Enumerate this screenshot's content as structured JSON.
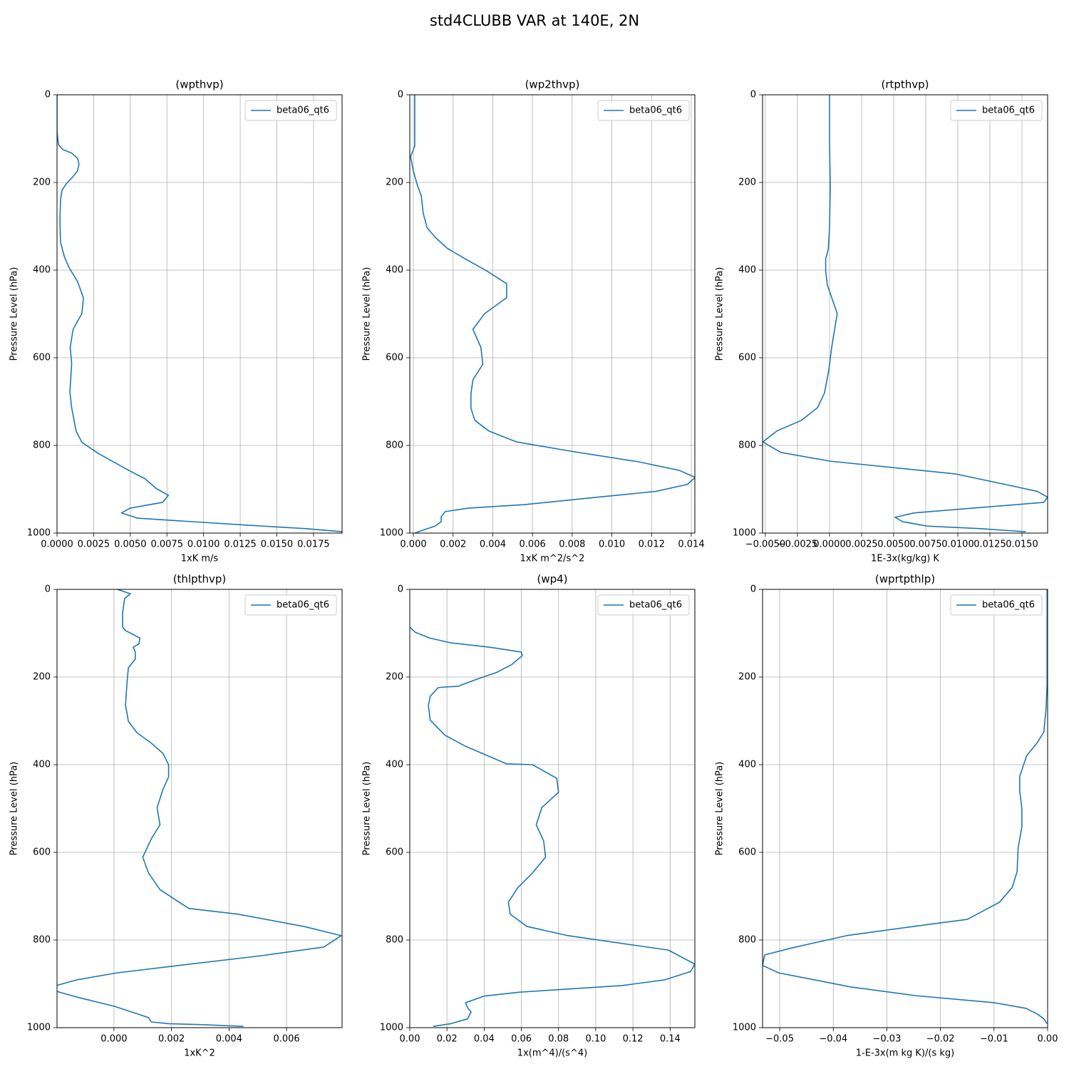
{
  "title": "std4CLUBB VAR at 140E, 2N",
  "chart_data": [
    {
      "type": "line",
      "title": "(wpthvp)",
      "xlabel": "1xK m/s",
      "ylabel": "Pressure Level (hPa)",
      "xlim": [
        0,
        0.01945
      ],
      "xticks": [
        {
          "value": 0,
          "label": "0.0000"
        },
        {
          "value": 0.0025,
          "label": "0.0025"
        },
        {
          "value": 0.005,
          "label": "0.0050"
        },
        {
          "value": 0.0075,
          "label": "0.0075"
        },
        {
          "value": 0.01,
          "label": "0.0100"
        },
        {
          "value": 0.0125,
          "label": "0.0125"
        },
        {
          "value": 0.015,
          "label": "0.0150"
        },
        {
          "value": 0.0175,
          "label": "0.0175"
        }
      ],
      "ylim": [
        1000,
        0
      ],
      "yticks": [
        0,
        200,
        400,
        600,
        800,
        1000
      ],
      "grid": true,
      "legend": "upper right",
      "y": [
        0,
        85,
        114,
        125,
        133,
        145,
        158,
        174,
        190,
        203,
        218,
        239,
        288,
        337,
        369,
        393,
        426,
        463,
        499,
        535,
        576,
        613,
        678,
        714,
        767,
        793,
        818,
        857,
        876,
        899,
        914,
        930,
        943,
        954,
        966,
        972,
        982,
        990,
        997
      ],
      "series": [
        {
          "name": "beta06_qt6",
          "color": "#1f77b4",
          "values": [
            0,
            0,
            0.0001,
            0.0004,
            0.001,
            0.0014,
            0.0015,
            0.0014,
            0.001,
            0.00063,
            0.00034,
            0.00024,
            0.0002,
            0.00024,
            0.0005,
            0.0008,
            0.0014,
            0.0018,
            0.0017,
            0.0011,
            0.0009,
            0.001,
            0.00088,
            0.001,
            0.0013,
            0.0017,
            0.0028,
            0.0049,
            0.006,
            0.0068,
            0.0076,
            0.0072,
            0.005,
            0.0044,
            0.0055,
            0.0083,
            0.013,
            0.017,
            0.0195
          ]
        }
      ]
    },
    {
      "type": "line",
      "title": "(wp2thvp)",
      "xlabel": "1xK m^2/s^2",
      "ylabel": "Pressure Level (hPa)",
      "xlim": [
        -0.00018,
        0.01418
      ],
      "xticks": [
        {
          "value": 0,
          "label": "0.000"
        },
        {
          "value": 0.002,
          "label": "0.002"
        },
        {
          "value": 0.004,
          "label": "0.004"
        },
        {
          "value": 0.006,
          "label": "0.006"
        },
        {
          "value": 0.008,
          "label": "0.008"
        },
        {
          "value": 0.01,
          "label": "0.010"
        },
        {
          "value": 0.012,
          "label": "0.012"
        },
        {
          "value": 0.014,
          "label": "0.014"
        }
      ],
      "ylim": [
        1000,
        0
      ],
      "yticks": [
        0,
        200,
        400,
        600,
        800,
        1000
      ],
      "grid": true,
      "legend": "upper right",
      "y": [
        0,
        117,
        125,
        141,
        174,
        206,
        231,
        271,
        304,
        325,
        350,
        374,
        402,
        431,
        463,
        499,
        535,
        576,
        615,
        650,
        683,
        715,
        743,
        767,
        792,
        813,
        837,
        857,
        873,
        889,
        905,
        918,
        935,
        943,
        951,
        963,
        974,
        984,
        993,
        1000
      ],
      "series": [
        {
          "name": "beta06_qt6",
          "color": "#1f77b4",
          "values": [
            7e-05,
            7e-05,
            0,
            -0.00014,
            0,
            0.0002,
            0.0004,
            0.0005,
            0.0007,
            0.0011,
            0.0017,
            0.0026,
            0.0037,
            0.0047,
            0.0047,
            0.0036,
            0.003,
            0.0034,
            0.0035,
            0.003,
            0.0029,
            0.0029,
            0.0031,
            0.0038,
            0.0052,
            0.0079,
            0.0113,
            0.0134,
            0.0142,
            0.0138,
            0.0122,
            0.0093,
            0.0056,
            0.0028,
            0.0016,
            0.0014,
            0.0014,
            0.0011,
            0.0005,
            7e-05
          ]
        }
      ]
    },
    {
      "type": "line",
      "title": "(rtpthvp)",
      "xlabel": "1E-3x(kg/kg) K",
      "ylabel": "Pressure Level (hPa)",
      "xlim": [
        -0.00522,
        0.017
      ],
      "xticks": [
        {
          "value": -0.005,
          "label": "−0.0050"
        },
        {
          "value": -0.0025,
          "label": "−0.0025"
        },
        {
          "value": 0,
          "label": "0.0000"
        },
        {
          "value": 0.0025,
          "label": "0.0025"
        },
        {
          "value": 0.005,
          "label": "0.0050"
        },
        {
          "value": 0.0075,
          "label": "0.0075"
        },
        {
          "value": 0.01,
          "label": "0.0100"
        },
        {
          "value": 0.0125,
          "label": "0.0125"
        },
        {
          "value": 0.015,
          "label": "0.0150"
        }
      ],
      "ylim": [
        1000,
        0
      ],
      "yticks": [
        0,
        200,
        400,
        600,
        800,
        1000
      ],
      "grid": true,
      "legend": "upper right",
      "y": [
        0,
        109,
        206,
        304,
        353,
        374,
        402,
        434,
        463,
        499,
        576,
        629,
        681,
        714,
        743,
        767,
        792,
        816,
        836,
        865,
        889,
        905,
        918,
        930,
        954,
        964,
        974,
        984,
        990,
        997
      ],
      "series": [
        {
          "name": "beta06_qt6",
          "color": "#1f77b4",
          "values": [
            0,
            0,
            6e-05,
            0,
            -0.0001,
            -0.0003,
            -0.0003,
            -0.00017,
            0.00017,
            0.0006,
            0.00017,
            -6e-05,
            -0.0004,
            -0.00094,
            -0.0022,
            -0.0041,
            -0.0052,
            -0.0038,
            6e-05,
            0.0098,
            0.0137,
            0.0162,
            0.017,
            0.0167,
            0.0066,
            0.0051,
            0.0057,
            0.0076,
            0.0118,
            0.0153
          ]
        }
      ]
    },
    {
      "type": "line",
      "title": "(thlpthvp)",
      "xlabel": "1xK^2",
      "ylabel": "Pressure Level (hPa)",
      "xlim": [
        -0.00198,
        0.00793
      ],
      "xticks": [
        {
          "value": 0,
          "label": "0.000"
        },
        {
          "value": 0.002,
          "label": "0.002"
        },
        {
          "value": 0.004,
          "label": "0.004"
        },
        {
          "value": 0.006,
          "label": "0.006"
        }
      ],
      "ylim": [
        1000,
        0
      ],
      "yticks": [
        0,
        200,
        400,
        600,
        800,
        1000
      ],
      "grid": true,
      "legend": "upper right",
      "y": [
        0,
        10,
        21,
        54,
        86,
        94,
        111,
        124,
        132,
        143,
        159,
        179,
        216,
        265,
        281,
        301,
        327,
        351,
        374,
        400,
        428,
        457,
        498,
        537,
        569,
        611,
        647,
        685,
        728,
        741,
        769,
        790,
        816,
        836,
        860,
        875,
        891,
        904,
        917,
        930,
        951,
        966,
        977,
        987,
        991,
        993,
        997
      ],
      "series": [
        {
          "name": "beta06_qt6",
          "color": "#1f77b4",
          "values": [
            0.00012,
            0.00057,
            0.00037,
            0.0003,
            0.0003,
            0.0004,
            0.0009,
            0.00087,
            0.00067,
            0.00074,
            0.00074,
            0.0005,
            0.00045,
            0.0004,
            0.00045,
            0.0005,
            0.0008,
            0.0013,
            0.0017,
            0.0019,
            0.0019,
            0.0017,
            0.0015,
            0.0016,
            0.0013,
            0.001,
            0.0012,
            0.0016,
            0.0026,
            0.0043,
            0.0066,
            0.0079,
            0.0073,
            0.0051,
            0.002,
            0.0001,
            -0.0013,
            -0.002,
            -0.002,
            -0.0013,
            0,
            0.0007,
            0.0012,
            0.0013,
            0.0019,
            0.003,
            0.0045
          ]
        }
      ]
    },
    {
      "type": "line",
      "title": "(wp4)",
      "xlabel": "1x(m^4)/(s^4)",
      "ylabel": "Pressure Level (hPa)",
      "xlim": [
        0,
        0.1533
      ],
      "xticks": [
        {
          "value": 0,
          "label": "0.00"
        },
        {
          "value": 0.02,
          "label": "0.02"
        },
        {
          "value": 0.04,
          "label": "0.04"
        },
        {
          "value": 0.06,
          "label": "0.06"
        },
        {
          "value": 0.08,
          "label": "0.08"
        },
        {
          "value": 0.1,
          "label": "0.10"
        },
        {
          "value": 0.12,
          "label": "0.12"
        },
        {
          "value": 0.14,
          "label": "0.14"
        }
      ],
      "ylim": [
        1000,
        0
      ],
      "yticks": [
        0,
        200,
        400,
        600,
        800,
        1000
      ],
      "grid": true,
      "legend": "upper right",
      "y": [
        86,
        98,
        111,
        122,
        132,
        143,
        151,
        171,
        189,
        205,
        221,
        224,
        244,
        265,
        298,
        314,
        333,
        358,
        398,
        400,
        431,
        463,
        498,
        537,
        574,
        611,
        647,
        681,
        714,
        741,
        769,
        790,
        823,
        855,
        872,
        891,
        904,
        919,
        928,
        943,
        954,
        964,
        980,
        991,
        997
      ],
      "series": [
        {
          "name": "beta06_qt6",
          "color": "#1f77b4",
          "values": [
            0,
            0.003,
            0.0107,
            0.022,
            0.043,
            0.06,
            0.0605,
            0.055,
            0.047,
            0.036,
            0.026,
            0.0153,
            0.011,
            0.01,
            0.011,
            0.0146,
            0.019,
            0.03,
            0.052,
            0.066,
            0.079,
            0.08,
            0.071,
            0.068,
            0.072,
            0.073,
            0.066,
            0.058,
            0.053,
            0.054,
            0.063,
            0.085,
            0.139,
            0.1533,
            0.151,
            0.137,
            0.114,
            0.059,
            0.04,
            0.03,
            0.031,
            0.033,
            0.031,
            0.022,
            0.0126
          ]
        }
      ]
    },
    {
      "type": "line",
      "title": "(wprtpthlp)",
      "xlabel": "1-E-3x(m kg K)/(s kg)",
      "ylabel": "Pressure Level (hPa)",
      "xlim": [
        -0.0532,
        0
      ],
      "xticks": [
        {
          "value": -0.05,
          "label": "−0.05"
        },
        {
          "value": -0.04,
          "label": "−0.04"
        },
        {
          "value": -0.03,
          "label": "−0.03"
        },
        {
          "value": -0.02,
          "label": "−0.02"
        },
        {
          "value": -0.01,
          "label": "−0.01"
        },
        {
          "value": 0,
          "label": "0.00"
        }
      ],
      "ylim": [
        1000,
        0
      ],
      "yticks": [
        0,
        200,
        400,
        600,
        800,
        1000
      ],
      "grid": true,
      "legend": "upper right",
      "y": [
        0,
        216,
        273,
        325,
        351,
        379,
        426,
        460,
        501,
        541,
        590,
        644,
        680,
        714,
        753,
        769,
        790,
        818,
        834,
        858,
        875,
        891,
        907,
        927,
        943,
        956,
        969,
        980,
        991
      ],
      "series": [
        {
          "name": "beta06_qt6",
          "color": "#1f77b4",
          "values": [
            -0.0001,
            -0.0001,
            -0.0003,
            -0.0007,
            -0.002,
            -0.0039,
            -0.0052,
            -0.0052,
            -0.0048,
            -0.0048,
            -0.0055,
            -0.0057,
            -0.0066,
            -0.009,
            -0.015,
            -0.025,
            -0.0375,
            -0.0477,
            -0.0528,
            -0.0532,
            -0.0502,
            -0.0435,
            -0.0368,
            -0.0246,
            -0.01,
            -0.004,
            -0.0019,
            -0.0007,
            -0.0001
          ]
        }
      ]
    }
  ]
}
